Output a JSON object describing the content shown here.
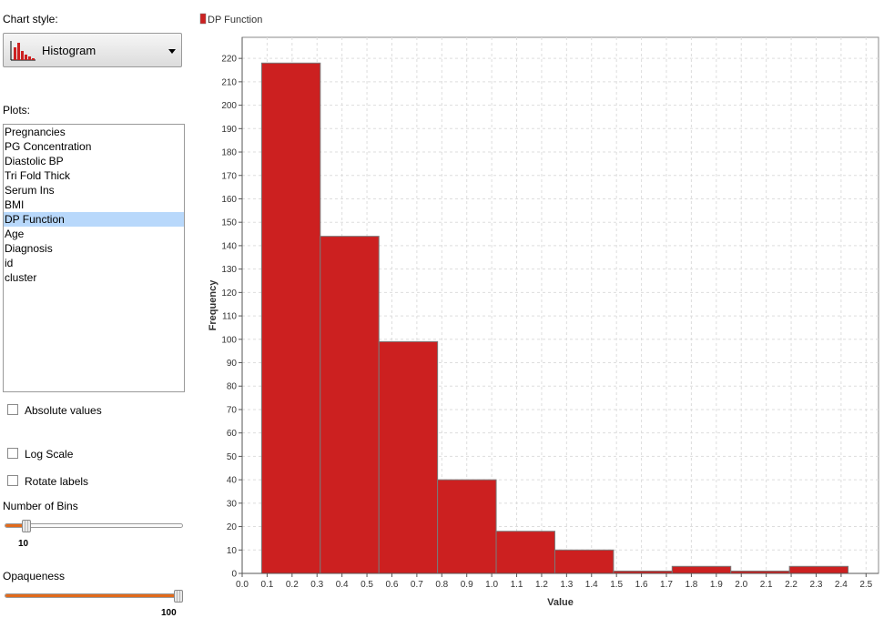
{
  "left_panel": {
    "chart_style_label": "Chart style:",
    "chart_style_value": "Histogram",
    "chart_style_icon": "histogram-icon",
    "plots_label": "Plots:",
    "plots": [
      "Pregnancies",
      "PG Concentration",
      "Diastolic BP",
      "Tri Fold Thick",
      "Serum Ins",
      "BMI",
      "DP Function",
      "Age",
      "Diagnosis",
      "id",
      "cluster"
    ],
    "selected_plot_index": 6,
    "absolute_values_label": "Absolute values",
    "absolute_values_checked": false,
    "log_scale_label": "Log Scale",
    "log_scale_checked": false,
    "rotate_labels_label": "Rotate labels",
    "rotate_labels_checked": false,
    "bins_label": "Number of Bins",
    "bins_value": "10",
    "bins_fraction": 0.1,
    "opaqueness_label": "Opaqueness",
    "opaqueness_value": "100",
    "opaqueness_fraction": 1.0,
    "accent_color": "#e26a1b"
  },
  "chart_data": {
    "type": "bar",
    "title": "",
    "xlabel": "Value",
    "ylabel": "Frequency",
    "legend": {
      "position": "top-left"
    },
    "grid": true,
    "series": [
      {
        "name": "DP Function",
        "color": "#cc2020",
        "bins": [
          {
            "x0": 0.078,
            "x1": 0.313,
            "value": 218
          },
          {
            "x0": 0.313,
            "x1": 0.548,
            "value": 144
          },
          {
            "x0": 0.548,
            "x1": 0.783,
            "value": 99
          },
          {
            "x0": 0.783,
            "x1": 1.018,
            "value": 40
          },
          {
            "x0": 1.018,
            "x1": 1.253,
            "value": 18
          },
          {
            "x0": 1.253,
            "x1": 1.488,
            "value": 10
          },
          {
            "x0": 1.488,
            "x1": 1.723,
            "value": 1
          },
          {
            "x0": 1.723,
            "x1": 1.958,
            "value": 3
          },
          {
            "x0": 1.958,
            "x1": 2.193,
            "value": 1
          },
          {
            "x0": 2.193,
            "x1": 2.428,
            "value": 3
          }
        ]
      }
    ],
    "xlim": [
      0.0,
      2.55
    ],
    "ylim": [
      0,
      229
    ],
    "x_ticks": [
      "0.0",
      "0.1",
      "0.2",
      "0.3",
      "0.4",
      "0.5",
      "0.6",
      "0.7",
      "0.8",
      "0.9",
      "1.0",
      "1.1",
      "1.2",
      "1.3",
      "1.4",
      "1.5",
      "1.6",
      "1.7",
      "1.8",
      "1.9",
      "2.0",
      "2.1",
      "2.2",
      "2.3",
      "2.4",
      "2.5"
    ],
    "y_ticks": [
      "0",
      "10",
      "20",
      "30",
      "40",
      "50",
      "60",
      "70",
      "80",
      "90",
      "100",
      "110",
      "120",
      "130",
      "140",
      "150",
      "160",
      "170",
      "180",
      "190",
      "200",
      "210",
      "220"
    ]
  }
}
